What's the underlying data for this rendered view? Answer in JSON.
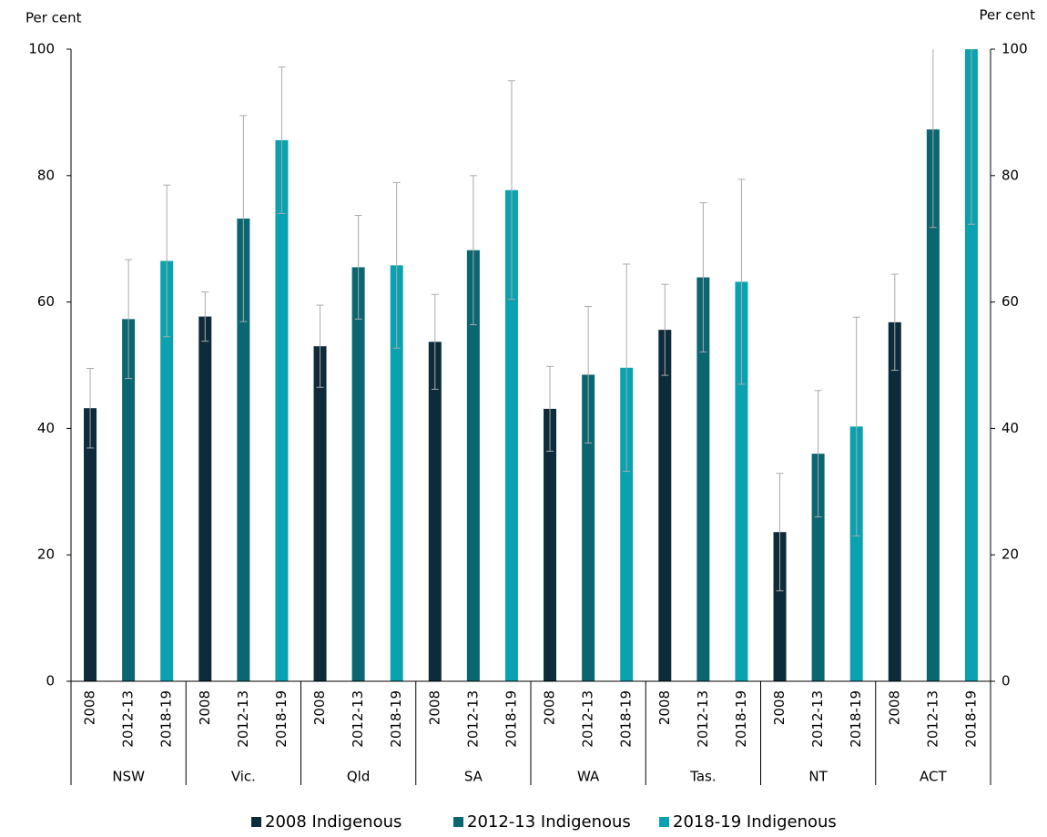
{
  "chart_data": {
    "type": "bar",
    "y_label": "Per cent",
    "y2_label": "Per cent",
    "categories": [
      "NSW",
      "Vic.",
      "Qld",
      "SA",
      "WA",
      "Tas.",
      "NT",
      "ACT"
    ],
    "subcategories": [
      "2008",
      "2012-13",
      "2018-19"
    ],
    "series": [
      {
        "name": "2008 Indigenous",
        "color": "#0d2b3a",
        "values": [
          43.2,
          57.7,
          53.0,
          53.7,
          43.1,
          55.6,
          23.6,
          56.8
        ],
        "errors": [
          6.3,
          3.9,
          6.5,
          7.5,
          6.7,
          7.2,
          9.3,
          7.6
        ]
      },
      {
        "name": "2012-13 Indigenous",
        "color": "#0a6670",
        "values": [
          57.3,
          73.2,
          65.5,
          68.2,
          48.5,
          63.9,
          36.0,
          87.3
        ],
        "errors": [
          9.4,
          16.3,
          8.2,
          11.8,
          10.8,
          11.8,
          10.0,
          15.5
        ]
      },
      {
        "name": "2018-19 Indigenous",
        "color": "#0aa2b0",
        "values": [
          66.5,
          85.6,
          65.8,
          77.7,
          49.6,
          63.2,
          40.3,
          100
        ],
        "errors": [
          12.0,
          11.6,
          13.1,
          17.3,
          16.4,
          16.2,
          17.3,
          27.7
        ]
      }
    ],
    "error_bar_color": "#aaaaaa",
    "ylim": [
      0,
      100
    ],
    "yticks": [
      0,
      20,
      40,
      60,
      80,
      100
    ],
    "y2lim": [
      0,
      100
    ],
    "y2ticks": [
      0,
      20,
      40,
      60,
      80,
      100
    ],
    "grid": false,
    "legend": "bottom"
  }
}
